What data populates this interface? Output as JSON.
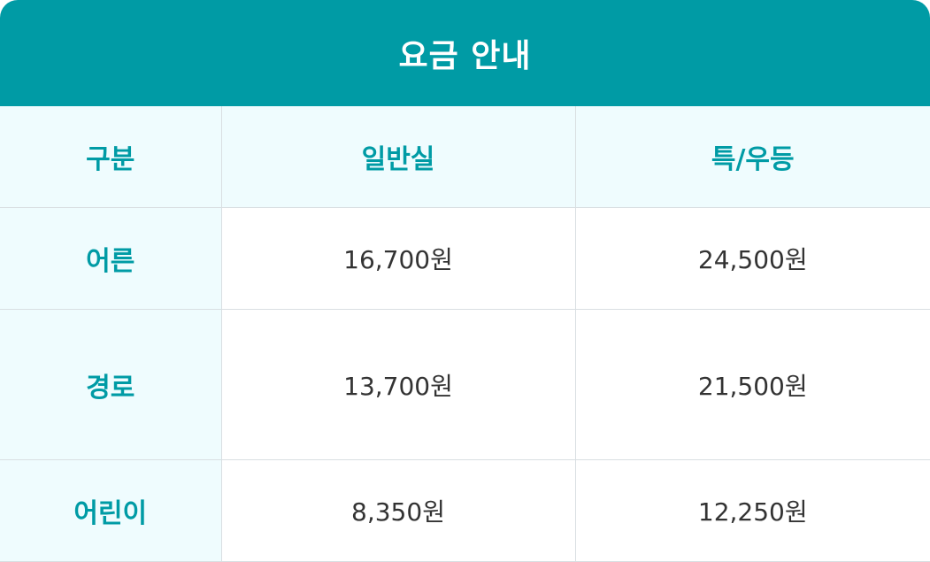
{
  "title": "요금 안내",
  "columns": [
    "구분",
    "일반실",
    "특/우등"
  ],
  "rows": [
    {
      "label": "어른",
      "general": "16,700원",
      "premium": "24,500원"
    },
    {
      "label": "경로",
      "general": "13,700원",
      "premium": "21,500원"
    },
    {
      "label": "어린이",
      "general": "8,350원",
      "premium": "12,250원"
    }
  ],
  "colors": {
    "accent": "#009ba5",
    "header_bg": "#009ba5",
    "label_bg": "#effcfe",
    "border": "#d9dfe2",
    "value_text": "#333333"
  }
}
